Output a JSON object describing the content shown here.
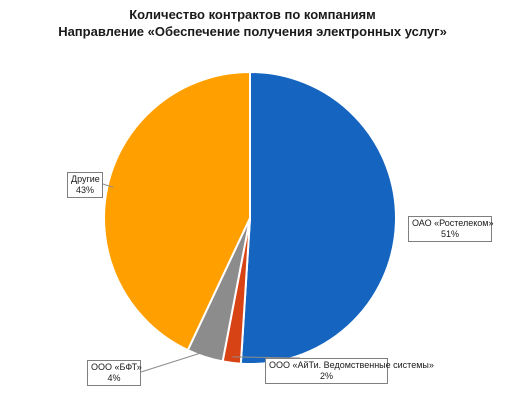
{
  "chart_data": {
    "type": "pie",
    "title": "Количество контрактов по компаниям",
    "subtitle": "Направление «Обеспечение получения электронных услуг»",
    "slices": [
      {
        "label": "ОАО «Ростелеком»",
        "value": 51,
        "value_label": "51%",
        "color": "#1565C0"
      },
      {
        "label": "ООО «АйТи. Ведомственные системы»",
        "value": 2,
        "value_label": "2%",
        "color": "#D84315"
      },
      {
        "label": "ООО «БФТ»",
        "value": 4,
        "value_label": "4%",
        "color": "#8C8C8C"
      },
      {
        "label": "Другие",
        "value": 43,
        "value_label": "43%",
        "color": "#FFA000"
      }
    ],
    "legend": "none"
  }
}
